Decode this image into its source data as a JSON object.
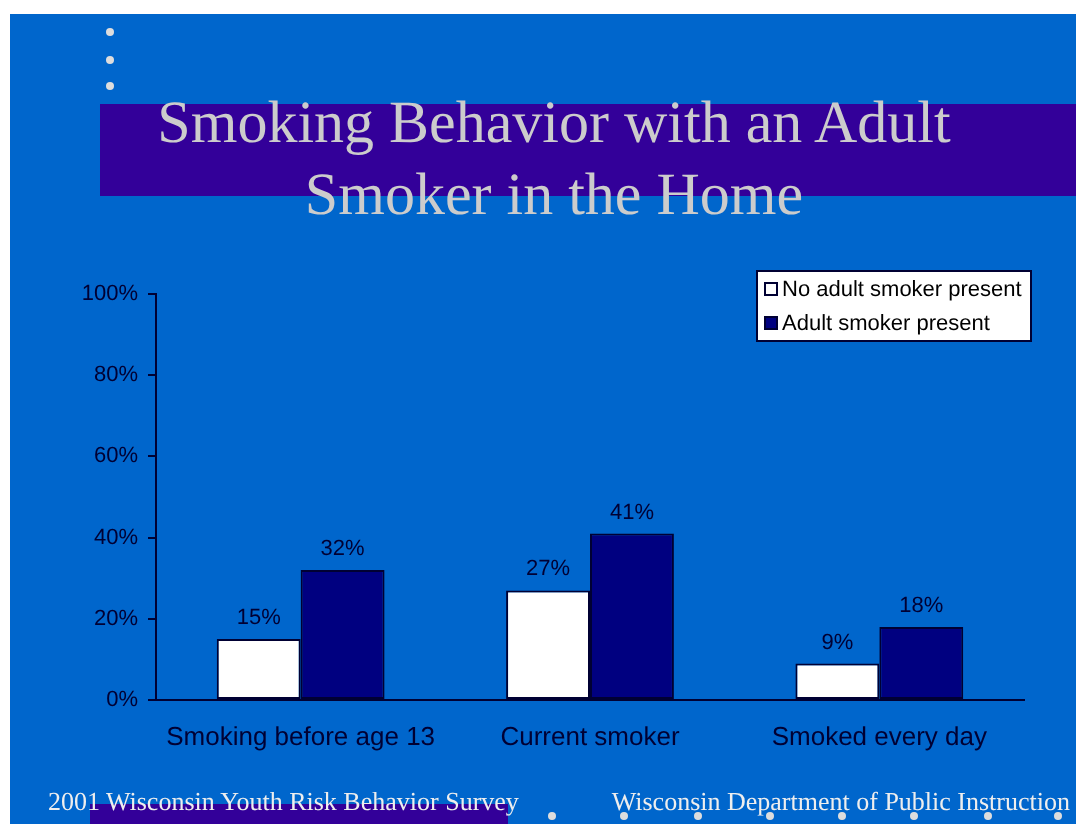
{
  "chart_data": {
    "type": "bar",
    "title": "Smoking Behavior with an Adult Smoker in the Home",
    "categories": [
      "Smoking before age 13",
      "Current smoker",
      "Smoked every day"
    ],
    "series": [
      {
        "name": "No adult smoker present",
        "color": "#ffffff",
        "values": [
          15,
          27,
          9
        ],
        "value_labels": [
          "15%",
          "27%",
          "9%"
        ]
      },
      {
        "name": "Adult smoker present",
        "color": "#000080",
        "values": [
          32,
          41,
          18
        ],
        "value_labels": [
          "32%",
          "41%",
          "18%"
        ]
      }
    ],
    "ylim": [
      0,
      100
    ],
    "yticks": [
      {
        "value": 0,
        "label": "0%"
      },
      {
        "value": 20,
        "label": "20%"
      },
      {
        "value": 40,
        "label": "40%"
      },
      {
        "value": 60,
        "label": "60%"
      },
      {
        "value": 80,
        "label": "80%"
      },
      {
        "value": 100,
        "label": "100%"
      }
    ],
    "grid": false,
    "legend": "top right",
    "annotations": [
      "2001 Wisconsin Youth Risk Behavior Survey",
      "Wisconsin Department of Public Instruction"
    ]
  }
}
